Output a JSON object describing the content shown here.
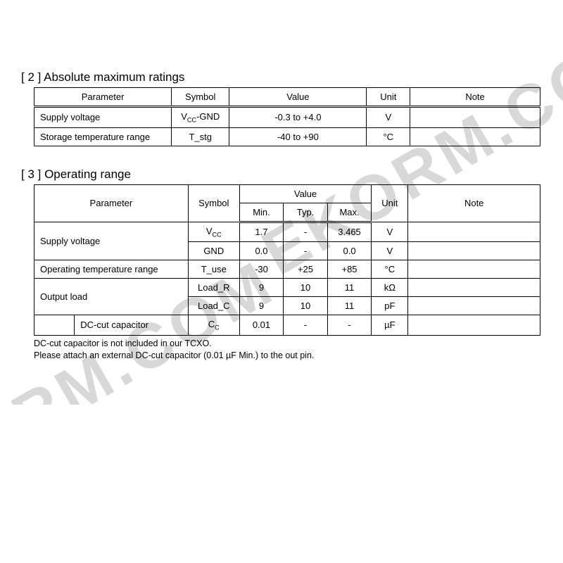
{
  "watermark": "EKORM.COM",
  "section1": {
    "title": "[ 2 ] Absolute maximum ratings",
    "columns": [
      "Parameter",
      "Symbol",
      "Value",
      "Unit",
      "Note"
    ],
    "col_widths": [
      "190",
      "80",
      "190",
      "60",
      "180"
    ],
    "rows": [
      {
        "param": "Supply voltage",
        "symbol_html": "V<sub>CC</sub>-GND",
        "value": "-0.3 to +4.0",
        "unit": "V",
        "note": ""
      },
      {
        "param": "Storage temperature range",
        "symbol_html": "T_stg",
        "value": "-40 to +90",
        "unit": "°C",
        "note": ""
      }
    ]
  },
  "section2": {
    "title": "[ 3 ] Operating range",
    "columns": {
      "parameter": "Parameter",
      "symbol": "Symbol",
      "value": "Value",
      "min": "Min.",
      "typ": "Typ.",
      "max": "Max.",
      "unit": "Unit",
      "note": "Note"
    },
    "indent_col_widths": [
      "55",
      "155",
      "70",
      "60",
      "60",
      "60",
      "50",
      "180"
    ],
    "rows": [
      {
        "param": "Supply voltage",
        "rowspan": 2,
        "indent": false,
        "cells": [
          {
            "symbol_html": "V<sub>CC</sub>",
            "min": "1.7",
            "typ": "-",
            "max": "3.465",
            "unit": "V",
            "note": ""
          },
          {
            "symbol_html": "GND",
            "min": "0.0",
            "typ": "-",
            "max": "0.0",
            "unit": "V",
            "note": ""
          }
        ]
      },
      {
        "param": "Operating temperature range",
        "rowspan": 1,
        "indent": false,
        "cells": [
          {
            "symbol_html": "T_use",
            "min": "-30",
            "typ": "+25",
            "max": "+85",
            "unit": "°C",
            "note": ""
          }
        ]
      },
      {
        "param": "Output load",
        "rowspan": 2,
        "indent": false,
        "cells": [
          {
            "symbol_html": "Load_R",
            "min": "9",
            "typ": "10",
            "max": "11",
            "unit": "kΩ",
            "note": ""
          },
          {
            "symbol_html": "Load_C",
            "min": "9",
            "typ": "10",
            "max": "11",
            "unit": "pF",
            "note": ""
          }
        ]
      },
      {
        "param": "DC-cut capacitor",
        "rowspan": 1,
        "indent": true,
        "cells": [
          {
            "symbol_html": "C<sub>C</sub>",
            "min": "0.01",
            "typ": "-",
            "max": "-",
            "unit": "µF",
            "note": ""
          }
        ]
      }
    ],
    "footnote_lines": [
      "DC-cut capacitor is not included in our TCXO.",
      "Please attach an external DC-cut capacitor (0.01 µF Min.) to the out pin."
    ]
  }
}
